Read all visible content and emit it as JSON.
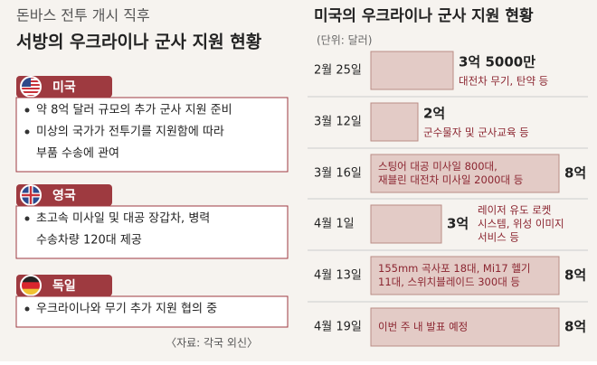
{
  "left_panel": {
    "title_top": "돈바스 전투 개시 직후",
    "title": "서방의 우크라이나 군사 지원 현황",
    "sections": [
      {
        "country": "미국",
        "bullets": [
          [
            "약 8억 달러 규모의 추가 군사 지원 준비"
          ],
          [
            "미상의 국가가 전투기를 지원함에 따라",
            "부품 수송에 관여"
          ]
        ]
      },
      {
        "country": "영국",
        "bullets": [
          [
            "초고속 미사일 및 대공 장갑차, 병력",
            "수송차량 120대 제공"
          ]
        ]
      },
      {
        "country": "독일",
        "bullets": [
          [
            "우크라이나와 무기 추가 지원 협의 중"
          ]
        ]
      }
    ],
    "source": "〈자료: 각국 외신〉"
  },
  "chart_data": {
    "type": "bar",
    "orientation": "horizontal",
    "title": "미국의 우크라이나 군사 지원 현황",
    "subtitle": "(단위: 달러)",
    "categories": [
      "2월 25일",
      "3월 12일",
      "3월 16일",
      "4월 1일",
      "4월 13일",
      "4월 19일"
    ],
    "values": [
      3.5,
      2,
      8,
      3,
      8,
      8
    ],
    "value_labels": [
      "3억 5000만",
      "2억",
      "8억",
      "3억",
      "8억",
      "8억"
    ],
    "descriptions": [
      [
        "대전차 무기, 탄약 등"
      ],
      [
        "군수물자 및 군사교육 등"
      ],
      [
        "스팅어 대공 미사일 800대,",
        "재블린 대전차 미사일 2000대 등"
      ],
      [
        "레이저 유도 로켓",
        "시스템, 위성 이미지",
        "서비스 등"
      ],
      [
        "155mm 곡사포 18대, Mi17 헬기",
        "11대, 스위치블레이드 300대 등"
      ],
      [
        "이번 주 내 발표 예정"
      ]
    ],
    "color": "#e3cbc6"
  }
}
